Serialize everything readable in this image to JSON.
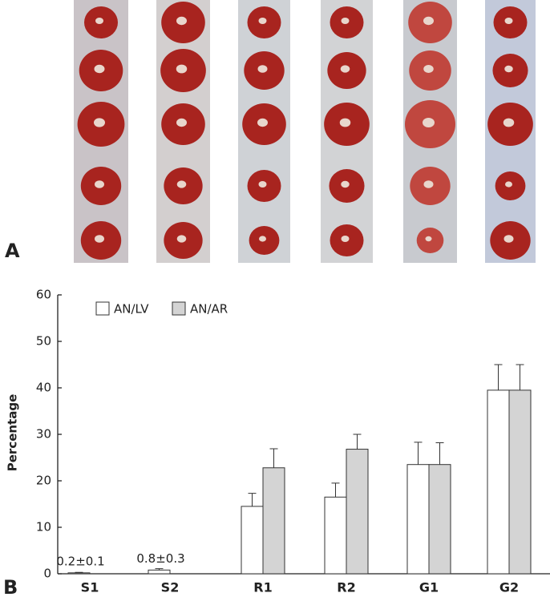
{
  "panels": {
    "a": "A",
    "b": "B"
  },
  "chart_data": {
    "type": "bar",
    "y_label": "Percentage",
    "categories": [
      "S1",
      "S2",
      "R1",
      "R2",
      "G1",
      "G2"
    ],
    "series": [
      {
        "name": "AN/LV",
        "color": "#ffffff",
        "values": [
          0.2,
          0.8,
          14.5,
          16.5,
          23.5,
          39.5
        ],
        "errors": [
          0.1,
          0.3,
          2.8,
          3.0,
          4.8,
          5.5
        ],
        "value_labels": [
          "0.2±0.1",
          "0.8±0.3",
          null,
          null,
          null,
          null
        ]
      },
      {
        "name": "AN/AR",
        "color": "#d4d4d4",
        "values": [
          null,
          null,
          22.8,
          26.8,
          23.5,
          39.5
        ],
        "errors": [
          null,
          null,
          4.1,
          3.2,
          4.7,
          5.5
        ]
      }
    ],
    "ylim": [
      0,
      60
    ],
    "yticks": [
      0,
      10,
      20,
      30,
      40,
      50,
      60
    ],
    "legend": "upper left"
  }
}
